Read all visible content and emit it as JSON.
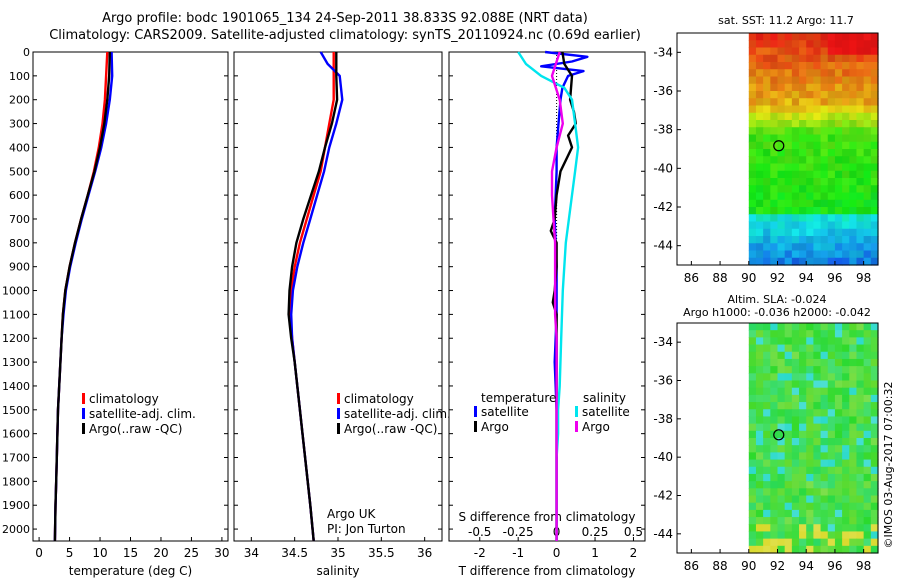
{
  "header": {
    "line1": "Argo profile: bodc 1901065_134 24-Sep-2011 38.833S 92.088E (NRT data)",
    "line2": "Climatology: CARS2009. Satellite-adjusted climatology: synTS_20110924.nc (0.69d earlier)"
  },
  "colors": {
    "red": "#ff0000",
    "blue": "#0000ff",
    "black": "#000000",
    "cyan": "#00e5ee",
    "magenta": "#ee00ee"
  },
  "chart_data": [
    {
      "type": "line",
      "xlabel": "temperature (deg C)",
      "ylabel": "",
      "xlim": [
        -1,
        31
      ],
      "ylim": [
        2050,
        0
      ],
      "xticks": [
        0,
        5,
        10,
        15,
        20,
        25,
        30
      ],
      "yticks": [
        0,
        100,
        200,
        300,
        400,
        500,
        600,
        700,
        800,
        900,
        1000,
        1100,
        1200,
        1300,
        1400,
        1500,
        1600,
        1700,
        1800,
        1900,
        2000
      ],
      "legend": [
        "climatology",
        "satellite-adj. clim.",
        "Argo(..raw -QC)"
      ],
      "series": [
        {
          "name": "climatology",
          "color": "red",
          "depth": [
            0,
            100,
            200,
            300,
            400,
            500,
            600,
            700,
            800,
            900,
            1000,
            1100,
            1200,
            1300,
            1400,
            1500,
            1600,
            1700,
            1800,
            1900,
            2050
          ],
          "values": [
            11.2,
            11.0,
            10.8,
            10.4,
            9.8,
            9.0,
            8.0,
            6.9,
            5.9,
            5.0,
            4.3,
            3.9,
            3.7,
            3.5,
            3.3,
            3.1,
            3.0,
            2.9,
            2.8,
            2.7,
            2.6
          ]
        },
        {
          "name": "satellite-adj. clim.",
          "color": "blue",
          "depth": [
            0,
            100,
            200,
            300,
            400,
            500,
            600,
            700,
            800,
            900,
            1000,
            1100,
            1200,
            1300,
            1400,
            1500,
            1600,
            1700,
            1800,
            1900,
            2050
          ],
          "values": [
            11.9,
            12.0,
            11.6,
            11.0,
            10.2,
            9.2,
            8.1,
            7.0,
            6.0,
            5.1,
            4.4,
            4.0,
            3.7,
            3.5,
            3.3,
            3.1,
            3.0,
            2.9,
            2.8,
            2.7,
            2.6
          ]
        },
        {
          "name": "Argo(..raw -QC)",
          "color": "black",
          "depth": [
            0,
            100,
            200,
            300,
            400,
            500,
            600,
            700,
            800,
            900,
            1000,
            1100,
            1200,
            1300,
            1400,
            1500,
            1600,
            1700,
            1800,
            1900,
            2050
          ],
          "values": [
            11.6,
            11.5,
            11.2,
            10.7,
            10.0,
            9.1,
            8.0,
            6.9,
            5.9,
            5.0,
            4.3,
            3.9,
            3.7,
            3.5,
            3.3,
            3.1,
            3.0,
            2.9,
            2.8,
            2.7,
            2.6
          ]
        }
      ]
    },
    {
      "type": "line",
      "xlabel": "salinity",
      "xlim": [
        33.8,
        36.2
      ],
      "ylim": [
        2050,
        0
      ],
      "xticks": [
        34,
        34.5,
        35,
        35.5,
        36
      ],
      "xticklabels": [
        "34",
        "34.5",
        "35",
        "35.5",
        "36"
      ],
      "legend": [
        "climatology",
        "satellite-adj. clim.",
        "Argo(..raw -QC)"
      ],
      "annotation": [
        "Argo UK",
        "PI: Jon Turton"
      ],
      "series": [
        {
          "name": "climatology",
          "color": "red",
          "depth": [
            0,
            100,
            200,
            300,
            400,
            500,
            600,
            700,
            800,
            900,
            1000,
            1100,
            1200,
            1300,
            1400,
            1500,
            1600,
            1700,
            1800,
            1900,
            2050
          ],
          "values": [
            34.95,
            34.95,
            34.95,
            34.9,
            34.85,
            34.8,
            34.72,
            34.64,
            34.56,
            34.5,
            34.46,
            34.45,
            34.47,
            34.5,
            34.53,
            34.56,
            34.59,
            34.62,
            34.65,
            34.68,
            34.72
          ]
        },
        {
          "name": "satellite-adj. clim.",
          "color": "blue",
          "depth": [
            0,
            50,
            100,
            200,
            300,
            400,
            500,
            600,
            700,
            800,
            900,
            1000,
            1100,
            1200,
            1300,
            1400,
            1500,
            1600,
            1700,
            1800,
            1900,
            2050
          ],
          "values": [
            34.8,
            34.88,
            35.02,
            35.05,
            34.98,
            34.9,
            34.84,
            34.76,
            34.68,
            34.6,
            34.53,
            34.48,
            34.46,
            34.47,
            34.5,
            34.53,
            34.56,
            34.59,
            34.62,
            34.65,
            34.68,
            34.72
          ]
        },
        {
          "name": "Argo(..raw -QC)",
          "color": "black",
          "depth": [
            0,
            100,
            200,
            300,
            400,
            500,
            600,
            700,
            800,
            900,
            1000,
            1100,
            1200,
            1300,
            1400,
            1500,
            1600,
            1700,
            1800,
            1900,
            2050
          ],
          "values": [
            34.98,
            34.98,
            34.99,
            34.93,
            34.85,
            34.78,
            34.69,
            34.6,
            34.52,
            34.47,
            34.44,
            34.43,
            34.46,
            34.5,
            34.53,
            34.56,
            34.59,
            34.62,
            34.65,
            34.68,
            34.72
          ]
        }
      ]
    },
    {
      "type": "line",
      "xlabel": "T difference from climatology",
      "top_xlabel": "S difference from climatology",
      "xlim": [
        -2.8,
        2.3
      ],
      "ylim": [
        2050,
        0
      ],
      "xticks": [
        -2,
        -1,
        0,
        1,
        2
      ],
      "xticklabels": [
        "-2",
        "-1",
        "0",
        "1",
        "2"
      ],
      "top_ticks": [
        -0.5,
        -0.25,
        0,
        0.25,
        0.5
      ],
      "top_ticklabels": [
        "-0.5",
        "-0.25",
        "0",
        "0.25",
        "0.5"
      ],
      "legend_titles": [
        "temperature",
        "salinity"
      ],
      "legend": [
        "satellite",
        "Argo",
        "satellite",
        "Argo"
      ],
      "series": [
        {
          "name": "temperature satellite",
          "color": "blue",
          "depth": [
            0,
            20,
            40,
            60,
            80,
            100,
            150,
            200,
            300,
            400,
            500,
            700,
            900,
            1100,
            1300,
            1500,
            1700,
            1900,
            2050
          ],
          "values": [
            -0.3,
            0.8,
            0.4,
            -0.4,
            0.7,
            0.3,
            0.15,
            0.1,
            0.05,
            0.0,
            0.0,
            -0.05,
            0.0,
            0.0,
            -0.05,
            0.0,
            0.0,
            0.0,
            0.0
          ]
        },
        {
          "name": "temperature Argo",
          "color": "black",
          "depth": [
            0,
            50,
            100,
            200,
            250,
            300,
            350,
            400,
            500,
            600,
            700,
            750,
            800,
            900,
            1000,
            1050,
            1100,
            1300,
            1500,
            1700,
            1900,
            2050
          ],
          "values": [
            0.15,
            0.2,
            0.4,
            0.35,
            0.45,
            0.5,
            0.3,
            0.4,
            0.1,
            0.0,
            -0.05,
            -0.15,
            0.0,
            0.0,
            -0.05,
            -0.1,
            0.0,
            0.0,
            0.0,
            0.0,
            0.0,
            0.0
          ]
        },
        {
          "name": "salinity satellite",
          "color": "cyan",
          "depth": [
            0,
            50,
            100,
            150,
            200,
            300,
            400,
            500,
            600,
            700,
            800,
            900,
            1000,
            1200,
            1400,
            1500,
            1600,
            1700,
            1800,
            1900,
            2050
          ],
          "values": [
            -0.25,
            -0.2,
            -0.1,
            0.05,
            0.1,
            0.12,
            0.14,
            0.12,
            0.1,
            0.08,
            0.06,
            0.05,
            0.04,
            0.03,
            0.02,
            0.01,
            0.01,
            0.0,
            0.0,
            0.0,
            0.0
          ]
        },
        {
          "name": "salinity Argo",
          "color": "magenta",
          "depth": [
            0,
            100,
            200,
            300,
            400,
            500,
            600,
            700,
            800,
            900,
            1000,
            1100,
            1200,
            1300,
            1400,
            1600,
            1800,
            2050
          ],
          "values": [
            0.02,
            -0.03,
            0.02,
            0.04,
            0.0,
            -0.03,
            -0.03,
            -0.02,
            -0.01,
            -0.01,
            -0.01,
            -0.01,
            0.0,
            0.0,
            0.0,
            0.0,
            0.0,
            0.0
          ]
        }
      ]
    },
    {
      "type": "heatmap",
      "title": "sat. SST: 11.2 Argo: 11.7",
      "xticks": [
        "86",
        "88",
        "90",
        "92",
        "94",
        "96",
        "98"
      ],
      "yticks": [
        "-34",
        "-36",
        "-38",
        "-40",
        "-42",
        "-44"
      ],
      "xlim": [
        85,
        99
      ],
      "ylim": [
        -45,
        -33
      ],
      "marker": {
        "lon": 92.088,
        "lat": -38.833
      }
    },
    {
      "type": "heatmap",
      "title": "Altim. SLA: -0.024",
      "subtitle": "Argo h1000: -0.036 h2000: -0.042",
      "xticks": [
        "86",
        "88",
        "90",
        "92",
        "94",
        "96",
        "98"
      ],
      "yticks": [
        "-34",
        "-36",
        "-38",
        "-40",
        "-42",
        "-44"
      ],
      "xlim": [
        85,
        99
      ],
      "ylim": [
        -45,
        -33
      ],
      "marker": {
        "lon": 92.088,
        "lat": -38.833
      }
    }
  ],
  "footer": {
    "credit": "©IMOS 03-Aug-2017 07:00:32"
  }
}
